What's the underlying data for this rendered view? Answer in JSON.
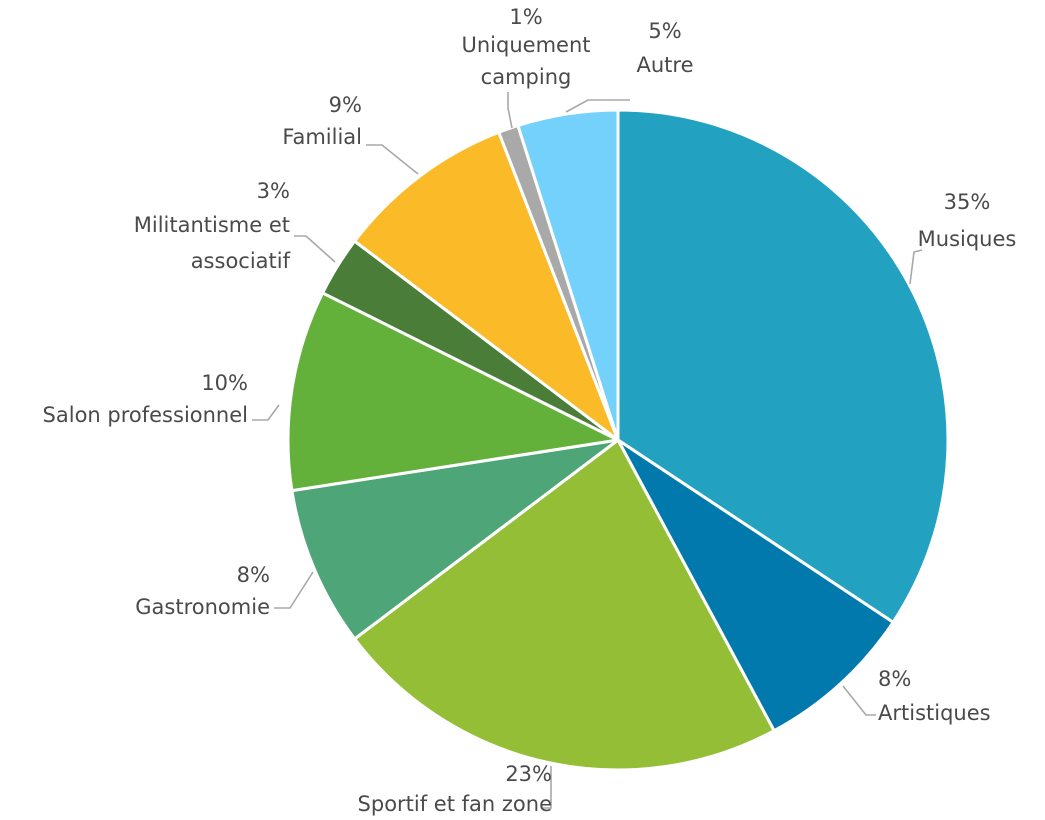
{
  "chart_data": {
    "type": "pie",
    "title": "",
    "start_angle_deg": 0,
    "direction": "clockwise",
    "slices": [
      {
        "label": "Musiques",
        "value": 35,
        "value_label": "35%",
        "color": "#22a2c0"
      },
      {
        "label": "Artistiques",
        "value": 8,
        "value_label": "8%",
        "color": "#0179ad"
      },
      {
        "label": "Sportif et fan zone",
        "value": 23,
        "value_label": "23%",
        "color": "#93be36"
      },
      {
        "label": "Gastronomie",
        "value": 8,
        "value_label": "8%",
        "color": "#4ea577"
      },
      {
        "label": "Salon professionnel",
        "value": 10,
        "value_label": "10%",
        "color": "#63b13b"
      },
      {
        "label": "Militantisme et associatif",
        "value": 3,
        "value_label": "3%",
        "color": "#4a7d38"
      },
      {
        "label": "Familial",
        "value": 9,
        "value_label": "9%",
        "color": "#fbbb29"
      },
      {
        "label": "Uniquement camping",
        "value": 1,
        "value_label": "1%",
        "color": "#a9a9a9"
      },
      {
        "label": "Autre",
        "value": 5,
        "value_label": "5%",
        "color": "#73d1fb"
      }
    ]
  }
}
